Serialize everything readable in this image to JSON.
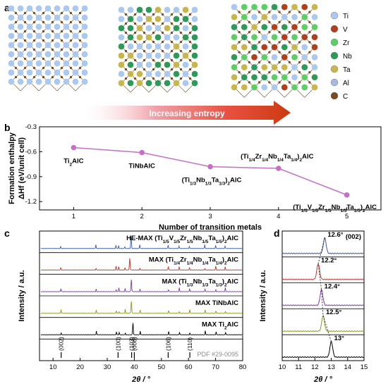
{
  "panel_labels": {
    "a": "a",
    "b": "b",
    "c": "c",
    "d": "d"
  },
  "panel_a": {
    "legend": [
      {
        "label": "Ti",
        "color": "#aac8f0"
      },
      {
        "label": "V",
        "color": "#b0401c"
      },
      {
        "label": "Zr",
        "color": "#5ccf64"
      },
      {
        "label": "Nb",
        "color": "#2e9a5a"
      },
      {
        "label": "Ta",
        "color": "#c8b64a"
      },
      {
        "label": "Al",
        "color": "#a6b8e0"
      },
      {
        "label": "C",
        "color": "#7a4a1e"
      }
    ],
    "arrow_text": "Increasing entropy",
    "structures": [
      {
        "palette": [
          "#aac8f0"
        ]
      },
      {
        "palette": [
          "#aac8f0",
          "#2e9a5a",
          "#c8b64a"
        ]
      },
      {
        "palette": [
          "#aac8f0",
          "#b0401c",
          "#5ccf64",
          "#2e9a5a",
          "#c8b64a"
        ]
      }
    ]
  },
  "chart_data": [
    {
      "type": "line",
      "panel": "b",
      "xlabel": "Number of transition metals",
      "ylabel_line1": "Formation enthalpy",
      "ylabel_line2": "ΔHf (eV/unit cell)",
      "xlim": [
        0.5,
        5.5
      ],
      "ylim": [
        -1.3,
        -0.3
      ],
      "x_ticks": [
        "1",
        "2",
        "3",
        "4",
        "5"
      ],
      "y_ticks": [
        "-0.3",
        "-0.6",
        "-0.9",
        "-1.2"
      ],
      "series": [
        {
          "x": [
            1,
            2,
            3,
            4,
            5
          ],
          "y": [
            -0.55,
            -0.61,
            -0.78,
            -0.8,
            -1.12
          ],
          "color": "#c86ec8"
        }
      ],
      "point_labels": [
        {
          "main": "Ti",
          "sub": "2",
          "rest": "AlC"
        },
        {
          "main": "TiNbAlC"
        },
        {
          "main": "(Ti",
          "sub": "1/3",
          "mid1": "Nb",
          "sub2": "1/3",
          "mid2": "Ta",
          "sub3": "1/3",
          ")": ")",
          "subf": "2",
          "rest": "AlC"
        },
        {
          "main": "(Ti",
          "sub": "1/4",
          "mid": "Zr1/4Nb1/4Ta1/4",
          "rest": ")2AlC"
        },
        {
          "main": "(Ti",
          "sub": "1/5",
          "mid": "V1/5Zr1/5Nb1/5Ta1/5",
          "rest": ")2AlC"
        }
      ]
    },
    {
      "type": "line",
      "panel": "c",
      "xlabel": "2θ / °",
      "ylabel": "Intensity / a.u.",
      "xlim": [
        5,
        80
      ],
      "x_ticks": [
        "10",
        "20",
        "30",
        "40",
        "50",
        "60",
        "70",
        "80"
      ],
      "series": [
        {
          "name": "HE-MAX (Ti1/5V1/5Zr1/5Nb1/5Ta1/5)2AlC",
          "color": "#3a5aa8",
          "main_peak": 38.8
        },
        {
          "name": "MAX (Ti1/4Zr1/4Nb1/4Ta1/4)2AlC",
          "color": "#c0392b",
          "main_peak": 38.3
        },
        {
          "name": "MAX (Ti1/3Nb1/3Ta1/3)2AlC",
          "color": "#7b3aa8",
          "main_peak": 38.9
        },
        {
          "name": "MAX TiNbAlC",
          "color": "#8a9a22",
          "main_peak": 38.9
        },
        {
          "name": "MAX Ti2AlC",
          "color": "#000000",
          "main_peak": 39.5
        }
      ],
      "reference": {
        "label": "PDF #29-0095",
        "lines": [
          {
            "x": 13.0,
            "hkl": "(002)"
          },
          {
            "x": 34.0,
            "hkl": "(100)"
          },
          {
            "x": 39.0,
            "hkl": "(103)"
          },
          {
            "x": 40.0,
            "hkl": "(006)"
          },
          {
            "x": 52.5,
            "hkl": "(106)"
          },
          {
            "x": 60.5,
            "hkl": "(110)"
          }
        ]
      }
    },
    {
      "type": "line",
      "panel": "d",
      "xlabel": "2θ / °",
      "ylabel": "Intensity / a.u.",
      "xlim": [
        10,
        15
      ],
      "x_ticks": [
        "10",
        "11",
        "12",
        "13",
        "14",
        "15"
      ],
      "title": "(002)",
      "series": [
        {
          "color": "#3a5aa8",
          "peak": 12.6,
          "label": "12.6°"
        },
        {
          "color": "#c0392b",
          "peak": 12.2,
          "label": "12.2°"
        },
        {
          "color": "#7b3aa8",
          "peak": 12.4,
          "label": "12.4°"
        },
        {
          "color": "#8a9a22",
          "peak": 12.5,
          "label": "12.5°"
        },
        {
          "color": "#000000",
          "peak": 13.0,
          "label": "13°"
        }
      ]
    }
  ]
}
